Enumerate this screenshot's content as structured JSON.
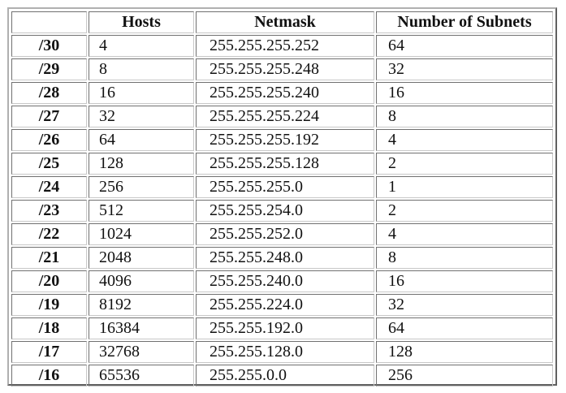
{
  "table": {
    "headers": {
      "prefix": "",
      "hosts": "Hosts",
      "netmask": "Netmask",
      "subnets": "Number of Subnets"
    },
    "rows": [
      {
        "prefix": "/30",
        "hosts": "4",
        "netmask": "255.255.255.252",
        "subnets": "64"
      },
      {
        "prefix": "/29",
        "hosts": "8",
        "netmask": "255.255.255.248",
        "subnets": "32"
      },
      {
        "prefix": "/28",
        "hosts": "16",
        "netmask": "255.255.255.240",
        "subnets": "16"
      },
      {
        "prefix": "/27",
        "hosts": "32",
        "netmask": "255.255.255.224",
        "subnets": "8"
      },
      {
        "prefix": "/26",
        "hosts": "64",
        "netmask": "255.255.255.192",
        "subnets": "4"
      },
      {
        "prefix": "/25",
        "hosts": "128",
        "netmask": "255.255.255.128",
        "subnets": "2"
      },
      {
        "prefix": "/24",
        "hosts": "256",
        "netmask": "255.255.255.0",
        "subnets": "1"
      },
      {
        "prefix": "/23",
        "hosts": "512",
        "netmask": "255.255.254.0",
        "subnets": "2"
      },
      {
        "prefix": "/22",
        "hosts": "1024",
        "netmask": "255.255.252.0",
        "subnets": "4"
      },
      {
        "prefix": "/21",
        "hosts": "2048",
        "netmask": "255.255.248.0",
        "subnets": "8"
      },
      {
        "prefix": "/20",
        "hosts": "4096",
        "netmask": "255.255.240.0",
        "subnets": "16"
      },
      {
        "prefix": "/19",
        "hosts": "8192",
        "netmask": "255.255.224.0",
        "subnets": "32"
      },
      {
        "prefix": "/18",
        "hosts": "16384",
        "netmask": "255.255.192.0",
        "subnets": "64"
      },
      {
        "prefix": "/17",
        "hosts": "32768",
        "netmask": "255.255.128.0",
        "subnets": "128"
      },
      {
        "prefix": "/16",
        "hosts": "65536",
        "netmask": "255.255.0.0",
        "subnets": "256"
      }
    ]
  }
}
